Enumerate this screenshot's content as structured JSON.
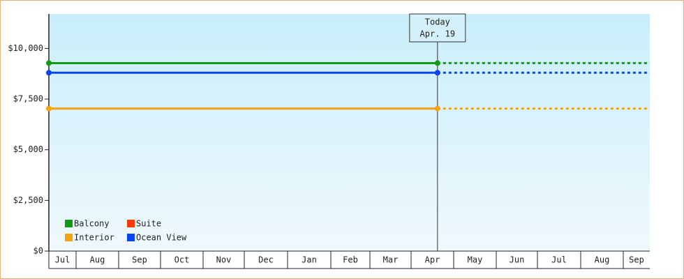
{
  "chart_data": {
    "type": "line",
    "categories": [
      "Jul",
      "Aug",
      "Sep",
      "Oct",
      "Nov",
      "Dec",
      "Jan",
      "Feb",
      "Mar",
      "Apr",
      "May",
      "Jun",
      "Jul",
      "Aug",
      "Sep"
    ],
    "ylim": [
      0,
      11700
    ],
    "yticks": [
      {
        "value": 0,
        "label": "$0"
      },
      {
        "value": 2500,
        "label": "$2,500"
      },
      {
        "value": 5000,
        "label": "$5,000"
      },
      {
        "value": 7500,
        "label": "$7,500"
      },
      {
        "value": 10000,
        "label": "$10,000"
      }
    ],
    "today": {
      "text": [
        "Today",
        "Apr. 19"
      ],
      "category": "Apr"
    },
    "legend": "lower left",
    "series": [
      {
        "name": "Balcony",
        "color": "#129a12",
        "values": [
          9275,
          9275,
          9275,
          9275,
          9275,
          9275,
          9275,
          9275,
          9275,
          9275,
          9275,
          9275,
          9275,
          9275,
          9275
        ]
      },
      {
        "name": "Suite",
        "color": "#ff3a0a",
        "values": [
          null,
          null,
          null,
          null,
          null,
          null,
          null,
          null,
          null,
          null,
          null,
          null,
          null,
          null,
          null
        ]
      },
      {
        "name": "Interior",
        "color": "#f8a10a",
        "values": [
          7035,
          7035,
          7035,
          7035,
          7035,
          7035,
          7035,
          7035,
          7035,
          7035,
          7035,
          7035,
          7035,
          7035,
          7035
        ]
      },
      {
        "name": "Ocean View",
        "color": "#0a44f0",
        "values": [
          8800,
          8800,
          8800,
          8800,
          8800,
          8800,
          8800,
          8800,
          8800,
          8800,
          8800,
          8800,
          8800,
          8800,
          8800
        ]
      }
    ]
  }
}
